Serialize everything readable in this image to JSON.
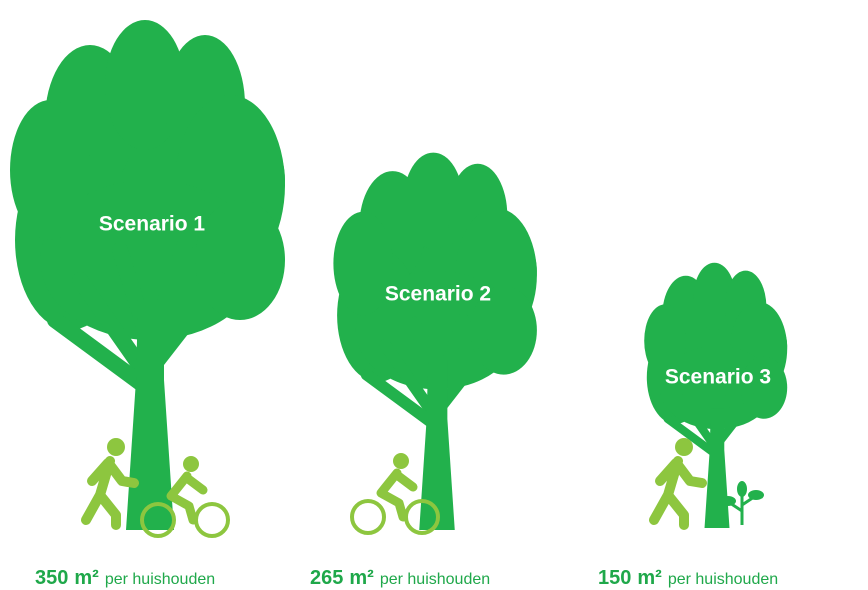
{
  "scenarios": [
    {
      "label": "Scenario 1",
      "value": "350",
      "unit": "m²",
      "per": "per huishouden"
    },
    {
      "label": "Scenario 2",
      "value": "265",
      "unit": "m²",
      "per": "per huishouden"
    },
    {
      "label": "Scenario 3",
      "value": "150",
      "unit": "m²",
      "per": "per huishouden"
    }
  ]
}
